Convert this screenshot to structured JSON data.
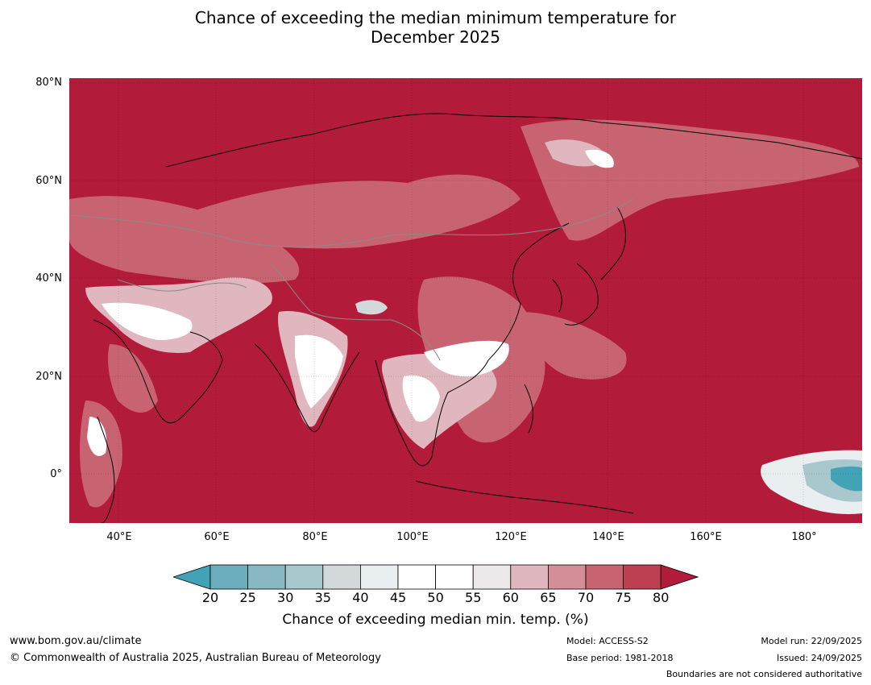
{
  "title": {
    "line1": "Chance of exceeding the median minimum temperature for",
    "line2": "December 2025"
  },
  "map": {
    "lon_range": [
      30,
      192
    ],
    "lat_range": [
      -10,
      81
    ],
    "base_color": "#b31b3a",
    "lat_ticks": [
      {
        "value": 80,
        "label": "80°N"
      },
      {
        "value": 60,
        "label": "60°N"
      },
      {
        "value": 40,
        "label": "40°N"
      },
      {
        "value": 20,
        "label": "20°N"
      },
      {
        "value": 0,
        "label": "0°"
      }
    ],
    "lon_ticks": [
      {
        "value": 40,
        "label": "40°E"
      },
      {
        "value": 60,
        "label": "60°E"
      },
      {
        "value": 80,
        "label": "80°E"
      },
      {
        "value": 100,
        "label": "100°E"
      },
      {
        "value": 120,
        "label": "120°E"
      },
      {
        "value": 140,
        "label": "140°E"
      },
      {
        "value": 160,
        "label": "160°E"
      },
      {
        "value": 180,
        "label": "180°"
      }
    ]
  },
  "colorbar": {
    "bins": [
      {
        "low": 20,
        "high": 25,
        "color": "#6aadbc"
      },
      {
        "low": 25,
        "high": 30,
        "color": "#88b8c4"
      },
      {
        "low": 30,
        "high": 35,
        "color": "#a9c8ce"
      },
      {
        "low": 35,
        "high": 40,
        "color": "#d3d8da"
      },
      {
        "low": 40,
        "high": 45,
        "color": "#e9eef0"
      },
      {
        "low": 45,
        "high": 50,
        "color": "#ffffff"
      },
      {
        "low": 50,
        "high": 55,
        "color": "#ffffff"
      },
      {
        "low": 55,
        "high": 60,
        "color": "#ede8ea"
      },
      {
        "low": 60,
        "high": 65,
        "color": "#e0b7bf"
      },
      {
        "low": 65,
        "high": 70,
        "color": "#d48e98"
      },
      {
        "low": 70,
        "high": 75,
        "color": "#c86472"
      },
      {
        "low": 75,
        "high": 80,
        "color": "#bd4052"
      }
    ],
    "under_color": "#43a3b6",
    "over_color": "#b31b3a",
    "tick_labels": [
      "20",
      "25",
      "30",
      "35",
      "40",
      "45",
      "50",
      "55",
      "60",
      "65",
      "70",
      "75",
      "80"
    ],
    "label": "Chance of exceeding median min. temp. (%)"
  },
  "footer": {
    "website": "www.bom.gov.au/climate",
    "copyright": "© Commonwealth of Australia 2025, Australian Bureau of Meteorology",
    "model": "Model: ACCESS-S2",
    "base_period": "Base period: 1981-2018",
    "model_run": "Model run: 22/09/2025",
    "issued": "Issued: 24/09/2025",
    "boundaries": "Boundaries are not considered authoritative"
  }
}
